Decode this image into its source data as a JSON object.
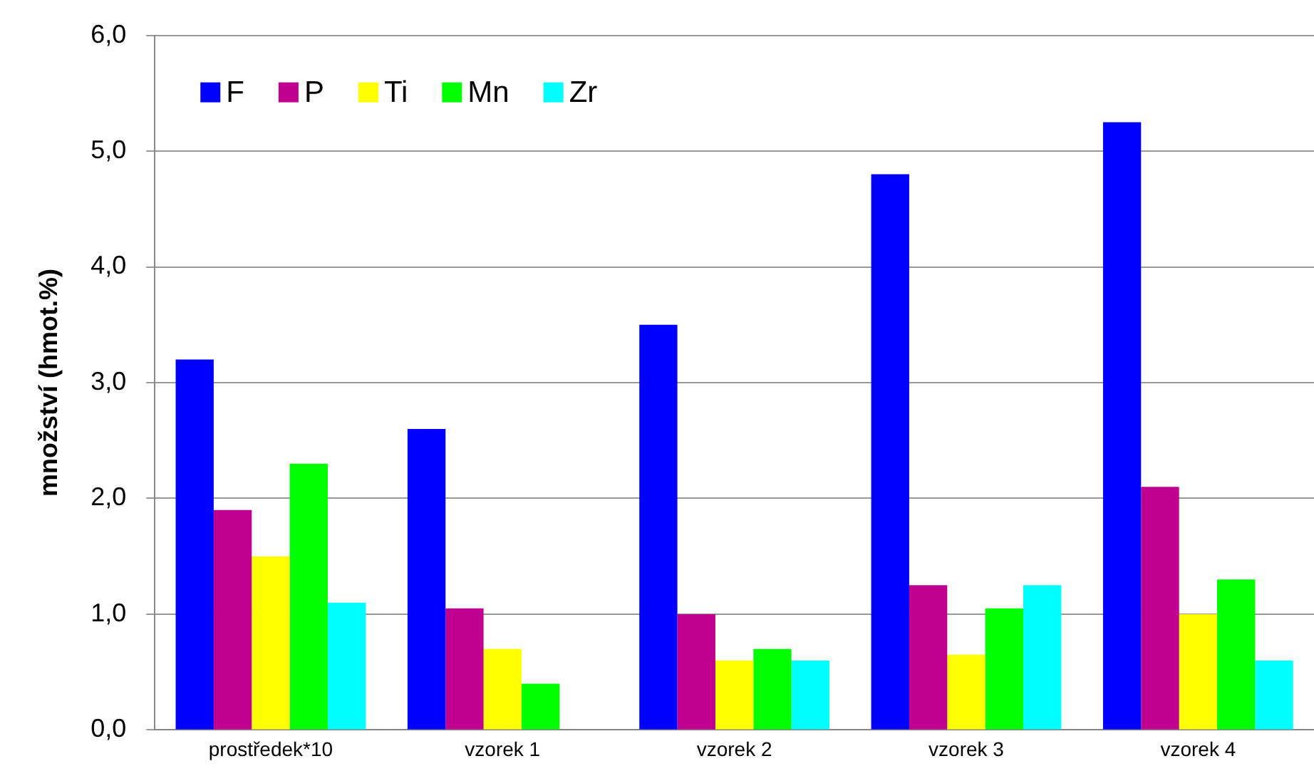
{
  "chart_data": {
    "type": "bar",
    "ylabel": "množství (hmot.%)",
    "categories": [
      "prostředek*10",
      "vzorek 1",
      "vzorek 2",
      "vzorek 3",
      "vzorek 4"
    ],
    "series": [
      {
        "name": "F",
        "color": "#0000ff",
        "values": [
          3.2,
          2.6,
          3.5,
          4.8,
          5.25
        ]
      },
      {
        "name": "P",
        "color": "#c0008f",
        "values": [
          1.9,
          1.05,
          1.0,
          1.25,
          2.1
        ]
      },
      {
        "name": "Ti",
        "color": "#ffff00",
        "values": [
          1.5,
          0.7,
          0.6,
          0.65,
          1.0
        ]
      },
      {
        "name": "Mn",
        "color": "#00ff00",
        "values": [
          2.3,
          0.4,
          0.7,
          1.05,
          1.3
        ]
      },
      {
        "name": "Zr",
        "color": "#00ffff",
        "values": [
          1.1,
          null,
          0.6,
          1.25,
          0.6
        ]
      }
    ],
    "ylim": [
      0,
      6
    ],
    "yticks": [
      {
        "value": 0,
        "label": "0,0"
      },
      {
        "value": 1,
        "label": "1,0"
      },
      {
        "value": 2,
        "label": "2,0"
      },
      {
        "value": 3,
        "label": "3,0"
      },
      {
        "value": 4,
        "label": "4,0"
      },
      {
        "value": 5,
        "label": "5,0"
      },
      {
        "value": 6,
        "label": "6,0"
      }
    ],
    "grid": "y",
    "legend": "top left"
  }
}
